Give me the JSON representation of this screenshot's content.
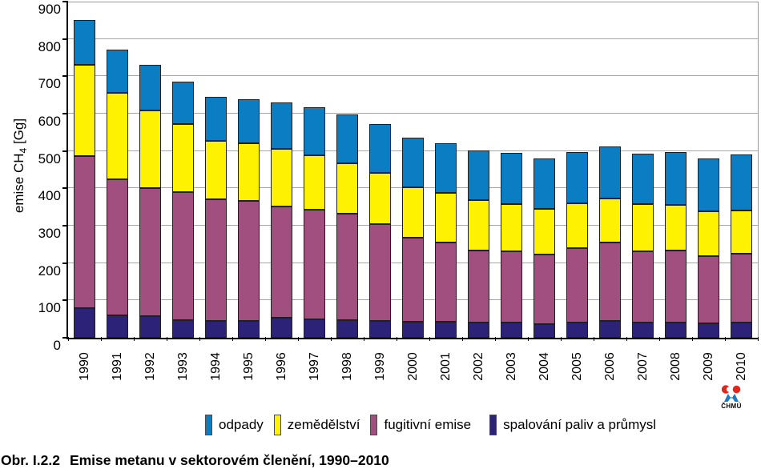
{
  "figure": {
    "caption_label": "Obr. I.2.2",
    "caption_text": "Emise metanu v sektorovém členění, 1990–2010"
  },
  "logo": {
    "text": "ČHMÚ",
    "red": "#e3261d",
    "blue": "#1e7bc2",
    "text_color": "#25306b"
  },
  "colors": {
    "axis": "#000000",
    "gridline": "#a6a6a6",
    "bar_border": "#1f1f1f"
  },
  "chart_data": {
    "type": "bar",
    "stacked": true,
    "title": "",
    "xlabel": "",
    "ylabel": "emise CH4 [Gg]",
    "ylabel_parts": {
      "prefix": "emise CH",
      "subscript": "4",
      "suffix": " [Gg]"
    },
    "ylim": [
      0,
      900
    ],
    "ytick_step": 100,
    "yticks": [
      0,
      100,
      200,
      300,
      400,
      500,
      600,
      700,
      800,
      900
    ],
    "grid": true,
    "legend_position": "bottom",
    "categories": [
      "1990",
      "1991",
      "1992",
      "1993",
      "1994",
      "1995",
      "1996",
      "1997",
      "1998",
      "1999",
      "2000",
      "2001",
      "2002",
      "2003",
      "2004",
      "2005",
      "2006",
      "2007",
      "2008",
      "2009",
      "2010"
    ],
    "series": [
      {
        "name": "spalování paliv a průmysl",
        "color": "#2c2277",
        "values": [
          79,
          61,
          57,
          48,
          44,
          45,
          53,
          50,
          47,
          44,
          43,
          43,
          40,
          40,
          37,
          40,
          44,
          40,
          41,
          39,
          41
        ]
      },
      {
        "name": "fugitivní emise",
        "color": "#a04f7e",
        "values": [
          407,
          364,
          343,
          342,
          326,
          321,
          299,
          293,
          285,
          261,
          224,
          211,
          193,
          192,
          185,
          200,
          210,
          191,
          192,
          180,
          184
        ]
      },
      {
        "name": "zemědělství",
        "color": "#fff200",
        "values": [
          244,
          230,
          208,
          182,
          158,
          154,
          153,
          145,
          136,
          137,
          135,
          134,
          135,
          125,
          123,
          120,
          118,
          127,
          123,
          120,
          115
        ]
      },
      {
        "name": "odpady",
        "color": "#0b7dc2",
        "values": [
          120,
          117,
          123,
          114,
          117,
          118,
          125,
          129,
          129,
          131,
          134,
          133,
          134,
          137,
          135,
          138,
          140,
          135,
          142,
          142,
          151
        ]
      }
    ],
    "totals": [
      850,
      772,
      731,
      686,
      645,
      638,
      630,
      617,
      597,
      573,
      536,
      521,
      502,
      494,
      480,
      498,
      512,
      493,
      498,
      481,
      491
    ],
    "legend": [
      "odpady",
      "zemědělství",
      "fugitivní emise",
      "spalování paliv a průmysl"
    ]
  }
}
